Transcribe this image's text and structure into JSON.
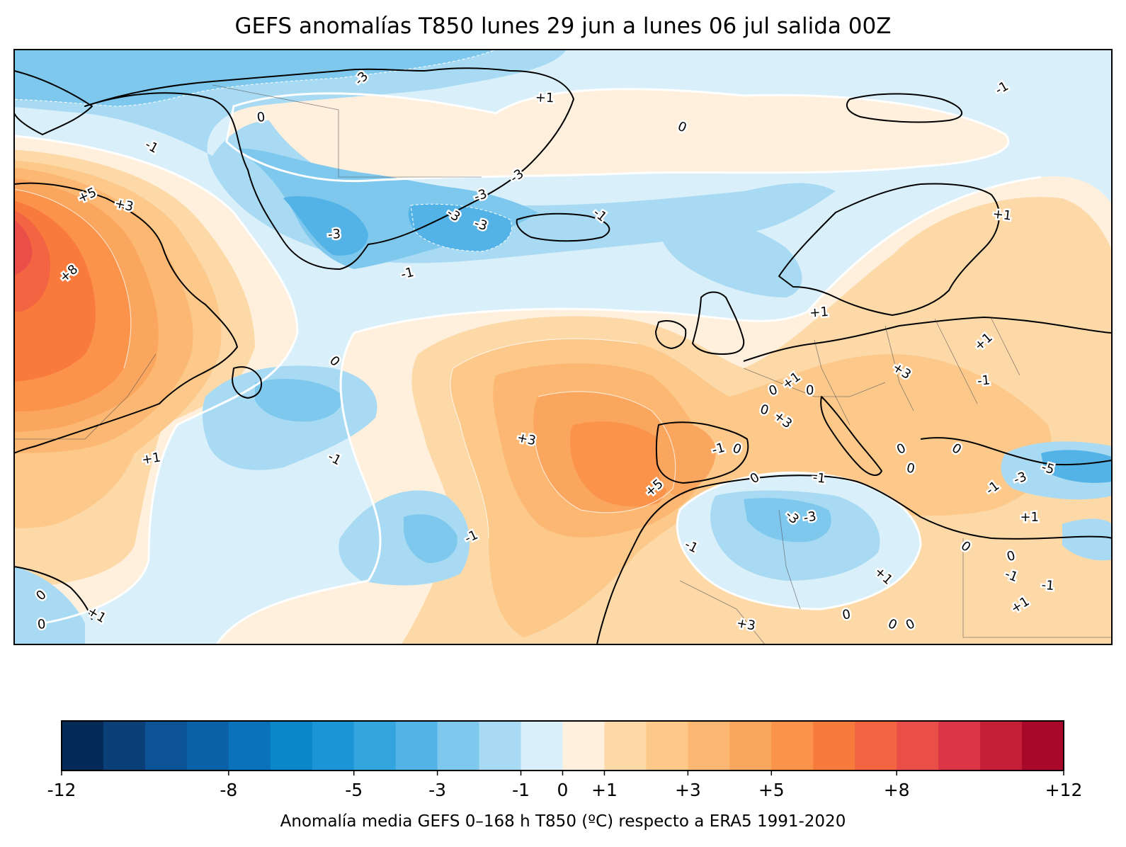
{
  "title": "GEFS anomalías T850 lunes 29 jun a lunes 06 jul salida 00Z",
  "colorbar": {
    "caption": "Anomalía media GEFS 0–168 h T850 (ºC) respecto a ERA5 1991-2020",
    "min": -12,
    "max": 12,
    "bins": [
      {
        "from": -12,
        "to": -11,
        "color": "#052a57"
      },
      {
        "from": -11,
        "to": -10,
        "color": "#0a3f78"
      },
      {
        "from": -10,
        "to": -9,
        "color": "#0b5394"
      },
      {
        "from": -9,
        "to": -8,
        "color": "#0a61a6"
      },
      {
        "from": -8,
        "to": -7,
        "color": "#0a72ba"
      },
      {
        "from": -7,
        "to": -6,
        "color": "#0a87c9"
      },
      {
        "from": -6,
        "to": -5,
        "color": "#1b95d5"
      },
      {
        "from": -5,
        "to": -4,
        "color": "#34a4de"
      },
      {
        "from": -4,
        "to": -3,
        "color": "#54b3e6"
      },
      {
        "from": -3,
        "to": -2,
        "color": "#7ec8ee"
      },
      {
        "from": -2,
        "to": -1,
        "color": "#a8dbf3"
      },
      {
        "from": -1,
        "to": 0,
        "color": "#d9eff9"
      },
      {
        "from": 0,
        "to": 1,
        "color": "#fff0dd"
      },
      {
        "from": 1,
        "to": 2,
        "color": "#fdd9a8"
      },
      {
        "from": 2,
        "to": 3,
        "color": "#fcc98b"
      },
      {
        "from": 3,
        "to": 4,
        "color": "#fcb872"
      },
      {
        "from": 4,
        "to": 5,
        "color": "#fba65e"
      },
      {
        "from": 5,
        "to": 6,
        "color": "#fb934b"
      },
      {
        "from": 6,
        "to": 7,
        "color": "#f97a3d"
      },
      {
        "from": 7,
        "to": 8,
        "color": "#f36442"
      },
      {
        "from": 8,
        "to": 9,
        "color": "#ea4e48"
      },
      {
        "from": 9,
        "to": 10,
        "color": "#dc3546"
      },
      {
        "from": 10,
        "to": 11,
        "color": "#c51f38"
      },
      {
        "from": 11,
        "to": 12,
        "color": "#a8082a"
      }
    ],
    "ticks": [
      {
        "value": -12,
        "label": "-12"
      },
      {
        "value": -8,
        "label": "-8"
      },
      {
        "value": -5,
        "label": "-5"
      },
      {
        "value": -3,
        "label": "-3"
      },
      {
        "value": -1,
        "label": "-1"
      },
      {
        "value": 0,
        "label": "0"
      },
      {
        "value": 1,
        "label": "+1"
      },
      {
        "value": 3,
        "label": "+3"
      },
      {
        "value": 5,
        "label": "+5"
      },
      {
        "value": 8,
        "label": "+8"
      },
      {
        "value": 12,
        "label": "+12"
      }
    ]
  },
  "map": {
    "contour_labels": [
      {
        "text": "-3",
        "lon": -40,
        "lat": 78
      },
      {
        "text": "0",
        "lon": -51,
        "lat": 74
      },
      {
        "text": "-1",
        "lon": -63,
        "lat": 71
      },
      {
        "text": "+5",
        "lon": -70,
        "lat": 66
      },
      {
        "text": "+3",
        "lon": -66,
        "lat": 65
      },
      {
        "text": "+8",
        "lon": -72,
        "lat": 58
      },
      {
        "text": "-3",
        "lon": -43,
        "lat": 62
      },
      {
        "text": "-3",
        "lon": -30,
        "lat": 64
      },
      {
        "text": "-3",
        "lon": -27,
        "lat": 66
      },
      {
        "text": "-3",
        "lon": -27,
        "lat": 63
      },
      {
        "text": "-3",
        "lon": -23,
        "lat": 68
      },
      {
        "text": "+1",
        "lon": -20,
        "lat": 76
      },
      {
        "text": "-1",
        "lon": -14,
        "lat": 64
      },
      {
        "text": "-1",
        "lon": -35,
        "lat": 58
      },
      {
        "text": "0",
        "lon": -5,
        "lat": 73
      },
      {
        "text": "-1",
        "lon": 30,
        "lat": 77
      },
      {
        "text": "+1",
        "lon": 30,
        "lat": 64
      },
      {
        "text": "0",
        "lon": -43,
        "lat": 49
      },
      {
        "text": "+1",
        "lon": -63,
        "lat": 39
      },
      {
        "text": "-1",
        "lon": -43,
        "lat": 39
      },
      {
        "text": "-1",
        "lon": -28,
        "lat": 31
      },
      {
        "text": "+3",
        "lon": -22,
        "lat": 41
      },
      {
        "text": "+5",
        "lon": -8,
        "lat": 36
      },
      {
        "text": "+1",
        "lon": 10,
        "lat": 54
      },
      {
        "text": "+3",
        "lon": 19,
        "lat": 48
      },
      {
        "text": "0",
        "lon": 5,
        "lat": 46
      },
      {
        "text": "0",
        "lon": 4,
        "lat": 44
      },
      {
        "text": "+1",
        "lon": 7,
        "lat": 47
      },
      {
        "text": "0",
        "lon": 9,
        "lat": 46
      },
      {
        "text": "+3",
        "lon": 6,
        "lat": 43
      },
      {
        "text": "-1",
        "lon": -1,
        "lat": 40
      },
      {
        "text": "0",
        "lon": 1,
        "lat": 40
      },
      {
        "text": "0",
        "lon": 3,
        "lat": 37
      },
      {
        "text": "-1",
        "lon": 10,
        "lat": 37
      },
      {
        "text": "-3",
        "lon": 7,
        "lat": 33
      },
      {
        "text": "-3",
        "lon": 9,
        "lat": 33
      },
      {
        "text": "-1",
        "lon": -4,
        "lat": 30
      },
      {
        "text": "0",
        "lon": 19,
        "lat": 40
      },
      {
        "text": "0",
        "lon": 20,
        "lat": 38
      },
      {
        "text": "+1",
        "lon": 28,
        "lat": 51
      },
      {
        "text": "-1",
        "lon": 28,
        "lat": 47
      },
      {
        "text": "0",
        "lon": 25,
        "lat": 40
      },
      {
        "text": "-3",
        "lon": 32,
        "lat": 37
      },
      {
        "text": "-5",
        "lon": 35,
        "lat": 38
      },
      {
        "text": "-1",
        "lon": 29,
        "lat": 36
      },
      {
        "text": "+1",
        "lon": 33,
        "lat": 33
      },
      {
        "text": "0",
        "lon": 26,
        "lat": 30
      },
      {
        "text": "0",
        "lon": 31,
        "lat": 29
      },
      {
        "text": "-1",
        "lon": 31,
        "lat": 27
      },
      {
        "text": "+1",
        "lon": 32,
        "lat": 24
      },
      {
        "text": "-1",
        "lon": 35,
        "lat": 26
      },
      {
        "text": "+1",
        "lon": 17,
        "lat": 27
      },
      {
        "text": "0",
        "lon": 13,
        "lat": 23
      },
      {
        "text": "0",
        "lon": 18,
        "lat": 22
      },
      {
        "text": "0",
        "lon": 20,
        "lat": 22
      },
      {
        "text": "+3",
        "lon": 2,
        "lat": 22
      },
      {
        "text": "0",
        "lon": -75,
        "lat": 25
      },
      {
        "text": "0",
        "lon": -75,
        "lat": 22
      },
      {
        "text": "+1",
        "lon": -69,
        "lat": 23
      }
    ]
  }
}
